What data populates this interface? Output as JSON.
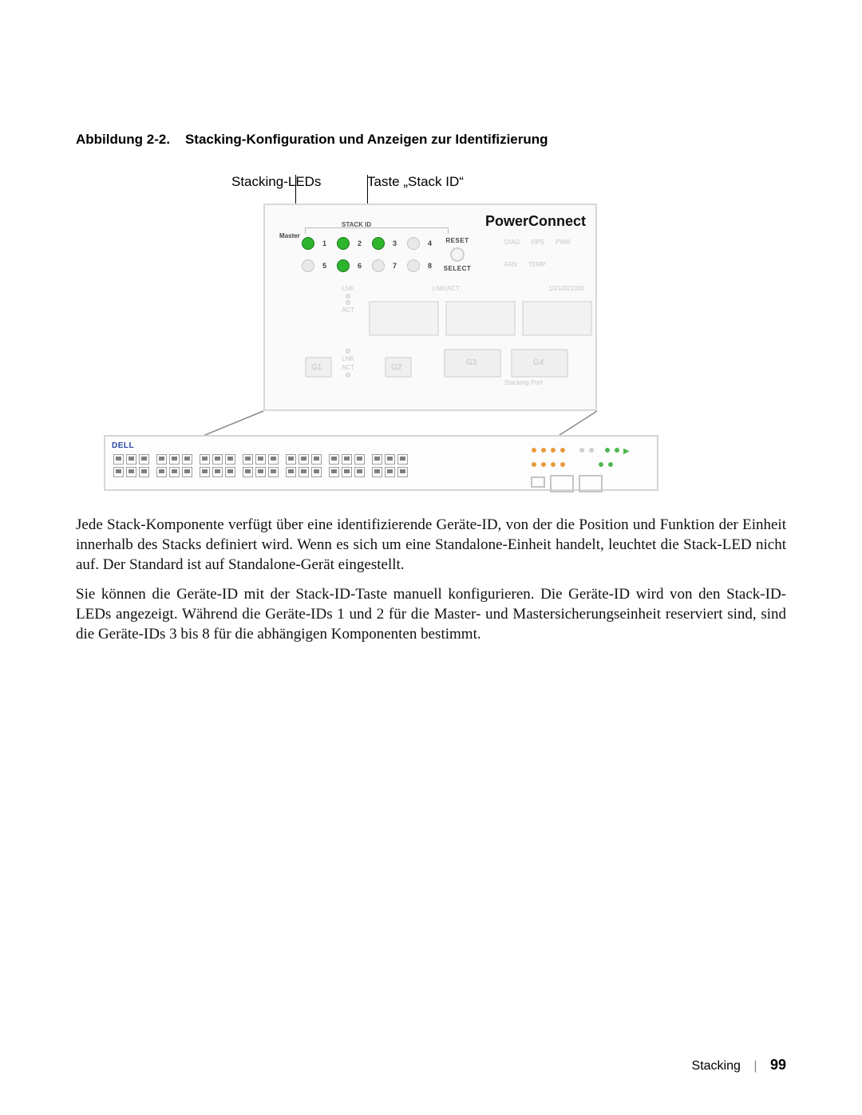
{
  "figure": {
    "caption_number": "Abbildung 2-2.",
    "caption_title": "Stacking-Konfiguration und Anzeigen zur Identifizierung",
    "callout_leds": "Stacking-LEDs",
    "callout_button": "Taste „Stack ID“",
    "panel": {
      "brand": "PowerConnect",
      "stack_id_label": "STACK ID",
      "master_label": "Master",
      "leds_row1": [
        {
          "n": "1",
          "on": true
        },
        {
          "n": "2",
          "on": true
        },
        {
          "n": "3",
          "on": true
        },
        {
          "n": "4",
          "on": false
        }
      ],
      "leds_row2": [
        {
          "n": "5",
          "on": false
        },
        {
          "n": "6",
          "on": true
        },
        {
          "n": "7",
          "on": false
        },
        {
          "n": "8",
          "on": false
        }
      ],
      "reset_label": "RESET",
      "select_label": "SELECT",
      "status_labels_top": [
        "DIAG",
        "RPS",
        "PWR"
      ],
      "status_labels_bot": [
        "FAN",
        "TEMP"
      ],
      "lnk_label": "LNK",
      "act_label": "ACT",
      "lnkact_label": "LNK/ACT",
      "tenghndx": "10/100/1000",
      "port_labels": [
        "G1",
        "G2",
        "G3",
        "G4"
      ],
      "stacking_port": "Stacking Port"
    },
    "rack": {
      "brand": "DELL",
      "port_groups": 7,
      "ports_per_group": 6,
      "colors": {
        "led_green": "#6ad56a",
        "dot_orange": "#e89a3c",
        "dot_green": "#4fb84f"
      }
    }
  },
  "paragraphs": {
    "p1": "Jede Stack-Komponente verfügt über eine identifizierende Geräte-ID, von der die Position und Funktion der Einheit innerhalb des Stacks definiert wird. Wenn es sich um eine Standalone-Einheit handelt, leuchtet die Stack-LED nicht auf. Der Standard ist auf Standalone-Gerät eingestellt.",
    "p2": "Sie können die Geräte-ID mit der Stack-ID-Taste manuell konfigurieren. Die Geräte-ID wird von den Stack-ID-LEDs angezeigt. Während die Geräte-IDs 1 und 2 für die Master- und Mastersicherungseinheit reserviert sind, sind die Geräte-IDs 3 bis 8 für die abhängigen Komponenten bestimmt."
  },
  "footer": {
    "section": "Stacking",
    "page": "99"
  }
}
